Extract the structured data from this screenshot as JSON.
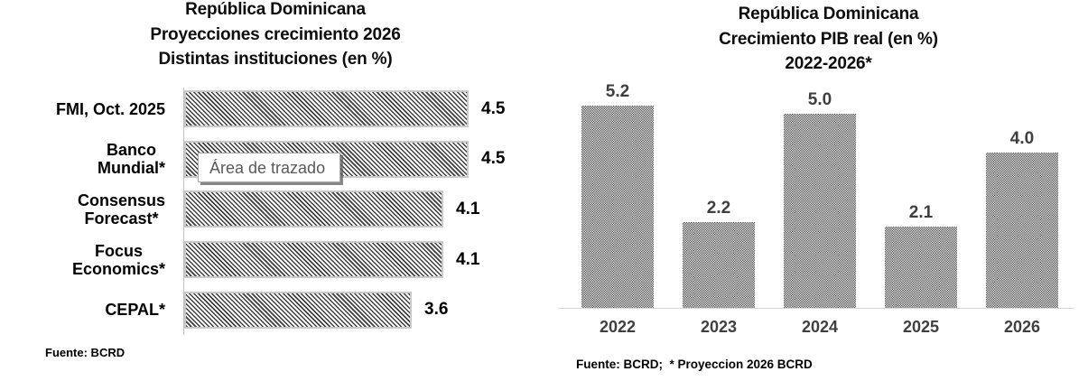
{
  "colors": {
    "background": "#ffffff",
    "bar_pattern_ink": "#3f3f3f",
    "bar_border": "#c9c9c9",
    "left_axis_line": "#bfbfbf",
    "right_axis_line": "#d6d6d6",
    "right_label_text": "#3f3f3f",
    "title_text": "#0d0d0d",
    "tooltip_text": "#595959",
    "tooltip_border": "#a6a6a6"
  },
  "chart_data": [
    {
      "type": "bar",
      "orientation": "horizontal",
      "title": "República Dominicana Proyecciones crecimiento 2026 Distintas instituciones (en %)",
      "title_lines": [
        "República Dominicana",
        "Proyecciones crecimiento 2026",
        "Distintas instituciones (en %)"
      ],
      "categories": [
        "FMI, Oct. 2025",
        "Banco Mundial*",
        "Consensus Forecast*",
        "Focus Economics*",
        "CEPAL*"
      ],
      "category_lines": [
        [
          "FMI, Oct. 2025"
        ],
        [
          "Banco",
          "Mundial*"
        ],
        [
          "Consensus",
          "Forecast*"
        ],
        [
          "Focus",
          "Economics*"
        ],
        [
          "CEPAL*"
        ]
      ],
      "values": [
        4.5,
        4.5,
        4.1,
        4.1,
        3.6
      ],
      "value_labels": [
        "4.5",
        "4.5",
        "4.1",
        "4.1",
        "3.6"
      ],
      "xlim": [
        0,
        5
      ],
      "grid": false,
      "legend": "none",
      "fill_pattern": "diagonal-hatch",
      "tooltip": "Área de trazado",
      "source": "Fuente: BCRD"
    },
    {
      "type": "bar",
      "orientation": "vertical",
      "title": "República Dominicana Crecimiento PIB real (en %) 2022-2026*",
      "title_lines": [
        "República Dominicana",
        "Crecimiento PIB real (en %)",
        "2022-2026*"
      ],
      "categories": [
        "2022",
        "2023",
        "2024",
        "2025",
        "2026"
      ],
      "values": [
        5.2,
        2.2,
        5.0,
        2.1,
        4.0
      ],
      "value_labels": [
        "5.2",
        "2.2",
        "5.0",
        "2.1",
        "4.0"
      ],
      "ylim": [
        0,
        5.5
      ],
      "grid": false,
      "legend": "none",
      "fill_pattern": "dotted-grid",
      "source": "Fuente: BCRD;  * Proyeccion 2026 BCRD"
    }
  ]
}
